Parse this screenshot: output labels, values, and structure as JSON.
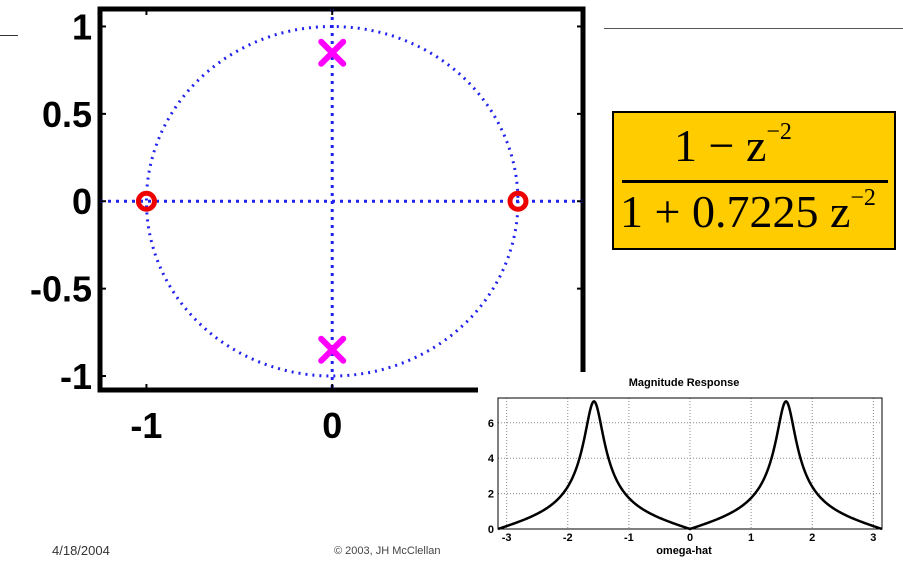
{
  "footer": {
    "date": "4/18/2004",
    "copyright": "© 2003, JH McClellan"
  },
  "formula": {
    "numerator_base": "1 − z",
    "numerator_exp": "−2",
    "denominator_base": "1 + 0.7225 z",
    "denominator_exp": "−2"
  },
  "colors": {
    "axis": "#000000",
    "unit_circle": "#2222ee",
    "zero_marker": "#ee0000",
    "pole_marker": "#ff00ff",
    "formula_box": "#ffcc00",
    "magnitude_curve": "#000000"
  },
  "chart_data": [
    {
      "type": "scatter",
      "title": "",
      "xlabel": "",
      "ylabel": "",
      "xlim": [
        -1.25,
        1.35
      ],
      "ylim": [
        -1.08,
        1.1
      ],
      "xticks": [
        -1,
        0
      ],
      "xtick_labels": [
        "-1",
        "0"
      ],
      "yticks": [
        1,
        0.5,
        0,
        -0.5,
        -1
      ],
      "ytick_labels": [
        "1",
        "0.5",
        "0",
        "-0.5",
        "-1"
      ],
      "unit_circle": true,
      "zeros": [
        [
          -1,
          0
        ],
        [
          1,
          0
        ]
      ],
      "poles": [
        [
          0,
          0.85
        ],
        [
          0,
          -0.85
        ]
      ]
    },
    {
      "type": "line",
      "title": "Magnitude Response",
      "xlabel": "omega-hat",
      "ylabel": "",
      "xlim": [
        -3.14159,
        3.14159
      ],
      "ylim": [
        0,
        7.4
      ],
      "xticks": [
        -3,
        -2,
        -1,
        0,
        1,
        2,
        3
      ],
      "xtick_labels": [
        "-3",
        "-2",
        "-1",
        "0",
        "1",
        "2",
        "3"
      ],
      "yticks": [
        0,
        2,
        4,
        6
      ],
      "ytick_labels": [
        "0",
        "2",
        "4",
        "6"
      ],
      "grid": true,
      "series": [
        {
          "function": "|1 - e^(-j2w)| / |1 + 0.7225 e^(-j2w)|"
        }
      ]
    }
  ]
}
